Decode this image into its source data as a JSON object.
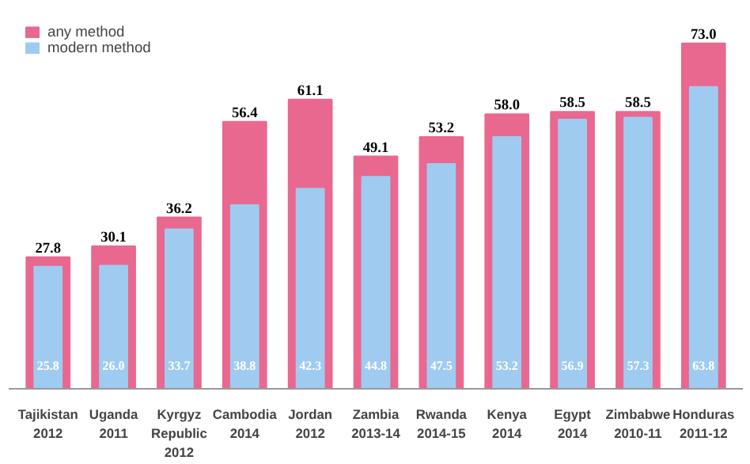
{
  "chart_data": {
    "type": "bar",
    "categories": [
      "Tajikistan\n2012",
      "Uganda\n2011",
      "Kyrgyz\nRepublic\n2012",
      "Cambodia\n2014",
      "Jordan\n2012",
      "Zambia\n2013-14",
      "Rwanda\n2014-15",
      "Kenya\n2014",
      "Egypt\n2014",
      "Zimbabwe\n2010-11",
      "Honduras\n2011-12"
    ],
    "series": [
      {
        "name": "any method",
        "color": "#e8688f",
        "values": [
          27.8,
          30.1,
          36.2,
          56.4,
          61.1,
          49.1,
          53.2,
          58.0,
          58.5,
          58.5,
          73.0
        ],
        "value_labels": [
          "27.8",
          "30.1",
          "36.2",
          "56.4",
          "61.1",
          "49.1",
          "53.2",
          "58.0",
          "58.5",
          "58.5",
          "73.0"
        ]
      },
      {
        "name": "modern method",
        "color": "#9fcbf0",
        "values": [
          25.8,
          26.0,
          33.7,
          38.8,
          42.3,
          44.8,
          47.5,
          53.2,
          56.9,
          57.3,
          63.8
        ],
        "value_labels": [
          "25.8",
          "26.0",
          "33.7",
          "38.8",
          "42.3",
          "44.8",
          "47.5",
          "53.2",
          "56.9",
          "57.3",
          "63.8"
        ]
      }
    ],
    "legend": "top left",
    "grid": false
  }
}
